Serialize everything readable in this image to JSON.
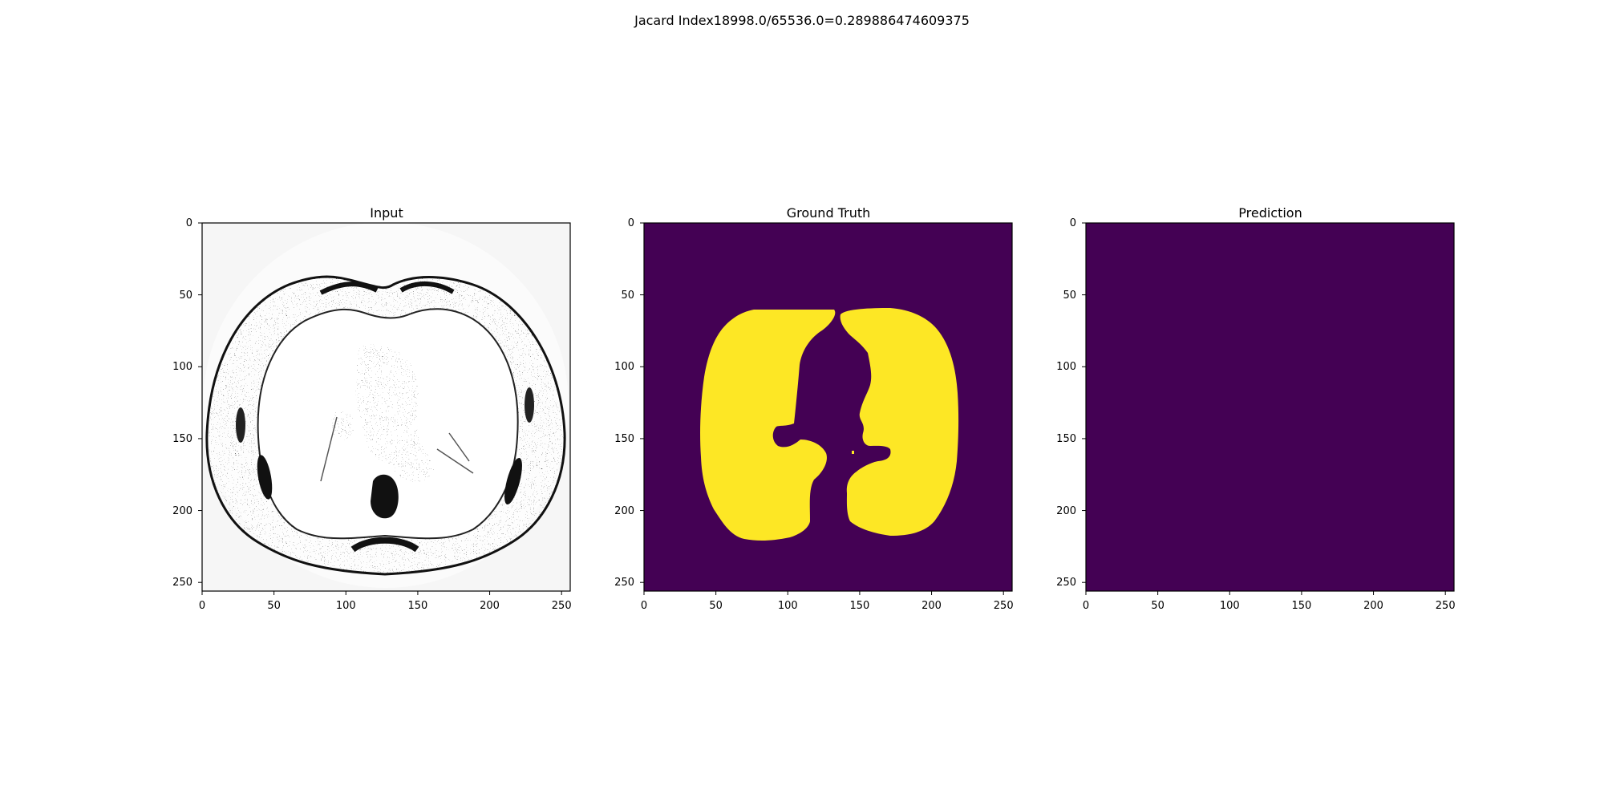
{
  "suptitle": "Jacard Index18998.0/65536.0=0.289886474609375",
  "colors": {
    "viridis_low": "#440154",
    "viridis_high": "#fde725",
    "input_background": "#f6f6f6",
    "ct_dark": "#111111"
  },
  "panels": [
    {
      "title": "Input",
      "content": "ct-scan",
      "x_ticks": [
        "0",
        "50",
        "100",
        "150",
        "200",
        "250"
      ],
      "y_ticks": [
        "0",
        "50",
        "100",
        "150",
        "200",
        "250"
      ]
    },
    {
      "title": "Ground Truth",
      "content": "lung-mask",
      "x_ticks": [
        "0",
        "50",
        "100",
        "150",
        "200",
        "250"
      ],
      "y_ticks": [
        "0",
        "50",
        "100",
        "150",
        "200",
        "250"
      ]
    },
    {
      "title": "Prediction",
      "content": "empty-mask",
      "x_ticks": [
        "0",
        "50",
        "100",
        "150",
        "200",
        "250"
      ],
      "y_ticks": [
        "0",
        "50",
        "100",
        "150",
        "200",
        "250"
      ]
    }
  ]
}
